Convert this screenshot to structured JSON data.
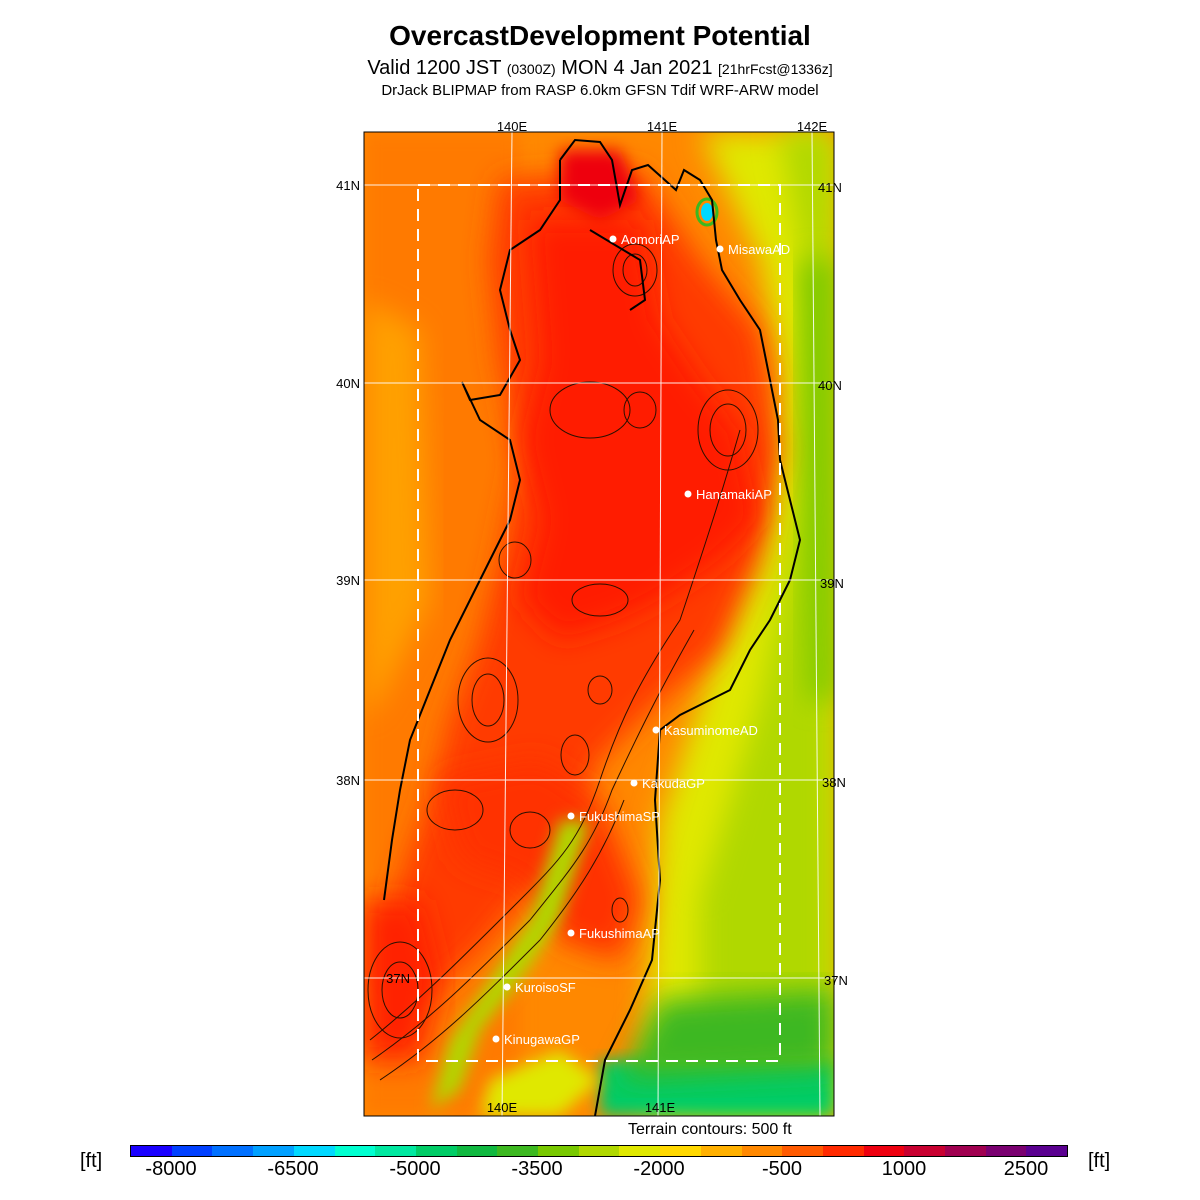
{
  "header": {
    "title": "OvercastDevelopment Potential",
    "valid_prefix": "Valid 1200 JST",
    "valid_utc": "(0300Z)",
    "valid_date": "MON 4 Jan 2021",
    "forecast_info": "[21hrFcst@1336z]",
    "model_line": "DrJack BLIPMAP from RASP 6.0km GFSN Tdif WRF-ARW model"
  },
  "map": {
    "lon_labels_top": [
      "140E",
      "141E",
      "142E"
    ],
    "lon_labels_bottom": [
      "140E",
      "141E"
    ],
    "lat_labels_left": [
      "41N",
      "40N",
      "39N",
      "38N",
      "37N"
    ],
    "lat_labels_right": [
      "41N",
      "40N",
      "39N",
      "38N",
      "37N"
    ],
    "stations": [
      "AomoriAP",
      "MisawaAD",
      "HanamakiAP",
      "KasuminomeAD",
      "KakudaGP",
      "FukushimaSP",
      "FukushimaAP",
      "KuroisoSF",
      "KinugawaGP"
    ]
  },
  "legend": {
    "terrain_note": "Terrain contours: 500 ft",
    "unit_left": "[ft]",
    "unit_right": "[ft]",
    "tick_labels": [
      "-8000",
      "-6500",
      "-5000",
      "-3500",
      "-2000",
      "-500",
      "1000",
      "2500"
    ],
    "colors": [
      "#1a00ff",
      "#0040ff",
      "#0070ff",
      "#00a0ff",
      "#00d8ff",
      "#00ffd0",
      "#00e8a0",
      "#00cc66",
      "#10b840",
      "#3cb820",
      "#78c800",
      "#b0d800",
      "#e0e800",
      "#ffd800",
      "#ffb000",
      "#ff8800",
      "#ff5a00",
      "#ff2a00",
      "#ee0010",
      "#c80030",
      "#a00050",
      "#7a0070",
      "#5a0090"
    ]
  }
}
